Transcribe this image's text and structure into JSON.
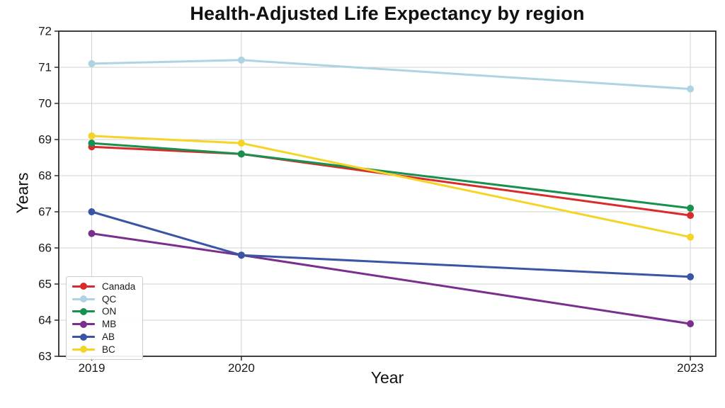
{
  "chart_data": {
    "type": "line",
    "title": "Health-Adjusted Life Expectancy by region",
    "xlabel": "Year",
    "ylabel": "Years",
    "x": [
      2019,
      2020,
      2023
    ],
    "xtick_labels": [
      "2019",
      "2020",
      "2023"
    ],
    "yticks": [
      63,
      64,
      65,
      66,
      67,
      68,
      69,
      70,
      71,
      72
    ],
    "ylim": [
      63,
      72
    ],
    "xlim": [
      2018.78,
      2023.17
    ],
    "grid": true,
    "legend_position": "lower left",
    "marker": "circle",
    "series": [
      {
        "name": "Canada",
        "color": "#d92b2b",
        "values": [
          68.8,
          68.6,
          66.9
        ]
      },
      {
        "name": "QC",
        "color": "#aed3e1",
        "values": [
          71.1,
          71.2,
          70.4
        ]
      },
      {
        "name": "ON",
        "color": "#16914f",
        "values": [
          68.9,
          68.6,
          67.1
        ]
      },
      {
        "name": "MB",
        "color": "#7a2e8d",
        "values": [
          66.4,
          65.8,
          63.9
        ]
      },
      {
        "name": "AB",
        "color": "#3a55a4",
        "values": [
          67.0,
          65.8,
          65.2
        ]
      },
      {
        "name": "BC",
        "color": "#f5d327",
        "values": [
          69.1,
          68.9,
          66.3
        ]
      }
    ],
    "colors": {
      "grid": "#d2d2d2",
      "spine": "#2b2b2b",
      "tick_label": "#1a1a1a"
    }
  }
}
